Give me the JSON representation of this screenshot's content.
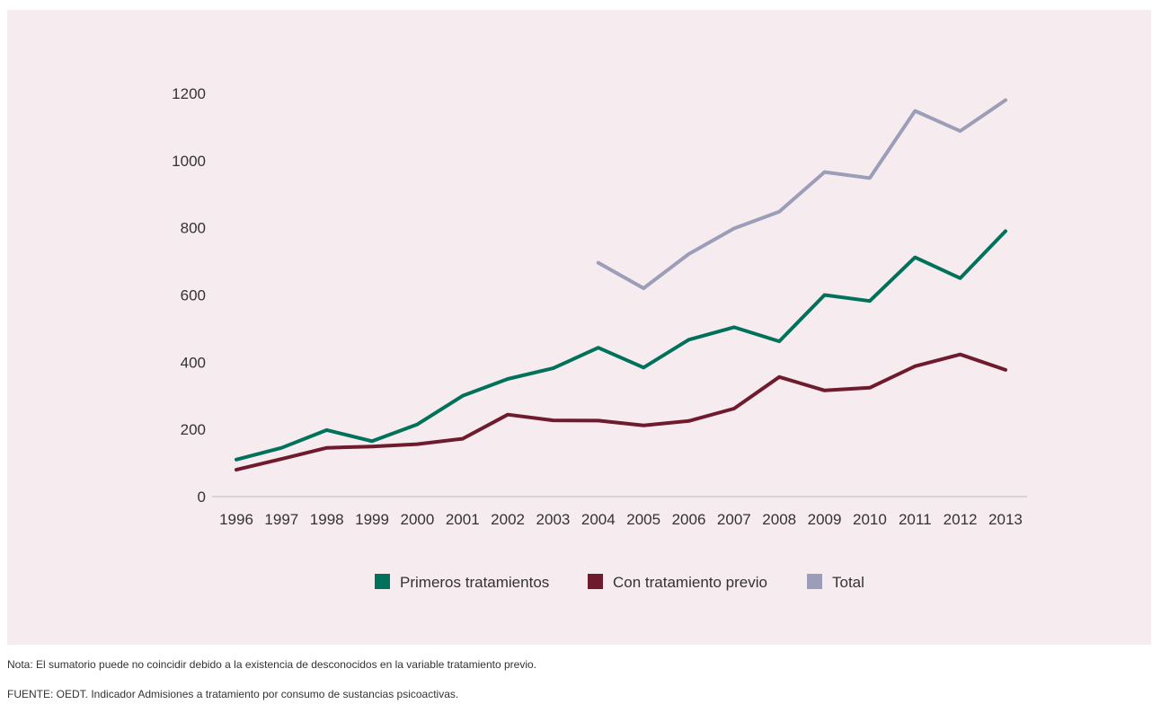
{
  "chart_data": {
    "type": "line",
    "title": "",
    "xlabel": "",
    "ylabel": "",
    "x": [
      "1996",
      "1997",
      "1998",
      "1999",
      "2000",
      "2001",
      "2002",
      "2003",
      "2004",
      "2005",
      "2006",
      "2007",
      "2008",
      "2009",
      "2010",
      "2011",
      "2012",
      "2013"
    ],
    "ylim": [
      0,
      1200
    ],
    "yticks": [
      "0",
      "200",
      "400",
      "600",
      "800",
      "1000",
      "1200"
    ],
    "grid": false,
    "legend_position": "bottom",
    "series": [
      {
        "name": "Primeros tratamientos",
        "color": "#00715a",
        "values": [
          110,
          145,
          198,
          165,
          215,
          300,
          350,
          382,
          443,
          384,
          467,
          504,
          462,
          600,
          582,
          712,
          650,
          790
        ]
      },
      {
        "name": "Con tratamiento previo",
        "color": "#6f1b2e",
        "values": [
          80,
          112,
          145,
          149,
          156,
          172,
          244,
          227,
          226,
          212,
          225,
          262,
          356,
          316,
          324,
          388,
          423,
          377
        ]
      },
      {
        "name": "Total",
        "color": "#9c9db8",
        "values": [
          null,
          null,
          null,
          null,
          null,
          null,
          null,
          null,
          696,
          620,
          722,
          798,
          848,
          966,
          948,
          1148,
          1088,
          1180
        ]
      }
    ]
  },
  "notes": {
    "nota": "Nota: El sumatorio puede no coincidir debido a la existencia de desconocidos en la variable tratamiento previo.",
    "fuente": "FUENTE: OEDT. Indicador Admisiones a tratamiento por consumo de sustancias psicoactivas."
  }
}
